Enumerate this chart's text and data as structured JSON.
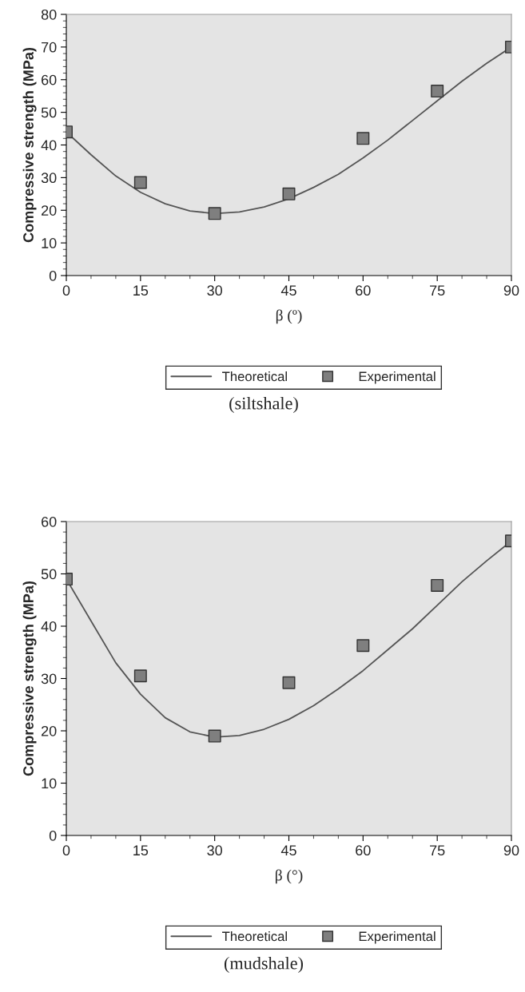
{
  "chart_data": [
    {
      "type": "line",
      "xlabel": "β (º)",
      "ylabel": "Compressive strength (MPa)",
      "xlim": [
        0,
        90
      ],
      "xticks": [
        0,
        15,
        30,
        45,
        60,
        75,
        90
      ],
      "ylim": [
        0,
        80
      ],
      "yticks": [
        0,
        10,
        20,
        30,
        40,
        50,
        60,
        70,
        80
      ],
      "grid": false,
      "legend": "bottom",
      "annotations": [
        "(siltshale)"
      ],
      "series": [
        {
          "name": "Theoretical",
          "color": "#555555",
          "marker": "none",
          "x": [
            0,
            5,
            10,
            15,
            20,
            25,
            30,
            35,
            40,
            45,
            50,
            55,
            60,
            65,
            70,
            75,
            80,
            85,
            90
          ],
          "values": [
            44,
            37,
            30.5,
            25.5,
            22,
            19.8,
            19,
            19.5,
            21,
            23.5,
            27,
            31,
            36,
            41.5,
            47.5,
            53.5,
            59.5,
            65,
            70
          ]
        },
        {
          "name": "Experimental",
          "type": "scatter",
          "color": "#7f7f7f",
          "marker": "square",
          "x": [
            0,
            15,
            30,
            45,
            60,
            75,
            90
          ],
          "values": [
            44,
            28.5,
            19,
            25,
            42,
            56.5,
            70
          ]
        }
      ]
    },
    {
      "type": "line",
      "xlabel": "β (°)",
      "ylabel": "Compressive strength (MPa)",
      "xlim": [
        0,
        90
      ],
      "xticks": [
        0,
        15,
        30,
        45,
        60,
        75,
        90
      ],
      "ylim": [
        0,
        60
      ],
      "yticks": [
        0,
        10,
        20,
        30,
        40,
        50,
        60
      ],
      "grid": false,
      "legend": "bottom",
      "annotations": [
        "(mudshale)"
      ],
      "series": [
        {
          "name": "Theoretical",
          "color": "#555555",
          "marker": "none",
          "x": [
            0,
            5,
            10,
            15,
            20,
            25,
            30,
            35,
            40,
            45,
            50,
            55,
            60,
            65,
            70,
            75,
            80,
            85,
            90
          ],
          "values": [
            49,
            41,
            33,
            27,
            22.5,
            19.8,
            18.8,
            19.1,
            20.3,
            22.2,
            24.8,
            28,
            31.5,
            35.5,
            39.5,
            44,
            48.5,
            52.5,
            56.3
          ]
        },
        {
          "name": "Experimental",
          "type": "scatter",
          "color": "#7f7f7f",
          "marker": "square",
          "x": [
            0,
            15,
            30,
            45,
            60,
            75,
            90
          ],
          "values": [
            49,
            30.5,
            19,
            29.2,
            36.3,
            47.8,
            56.3
          ]
        }
      ]
    }
  ]
}
